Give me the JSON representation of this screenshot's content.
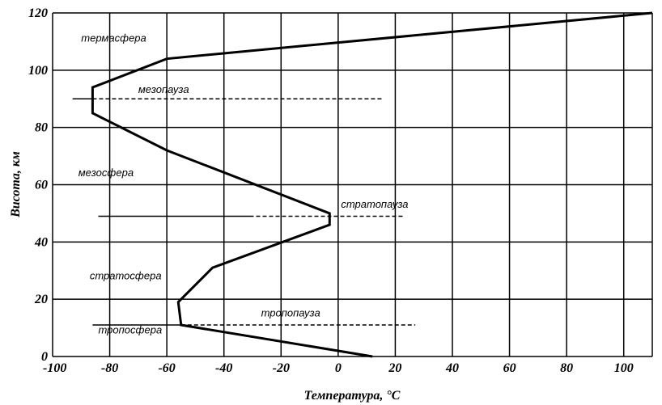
{
  "chart_data": {
    "type": "line",
    "xlabel": "Температура, °C",
    "ylabel": "Висота, км",
    "xlim": [
      -100,
      110
    ],
    "ylim": [
      0,
      120
    ],
    "x_ticks": [
      -100,
      -80,
      -60,
      -40,
      -20,
      0,
      20,
      40,
      60,
      80,
      100
    ],
    "y_ticks": [
      0,
      20,
      40,
      60,
      80,
      100,
      120
    ],
    "grid": true,
    "series": [
      {
        "points": [
          {
            "x": 12,
            "y": 0
          },
          {
            "x": -55,
            "y": 11
          },
          {
            "x": -56,
            "y": 19
          },
          {
            "x": -44,
            "y": 31
          },
          {
            "x": -3,
            "y": 46
          },
          {
            "x": -3,
            "y": 50
          },
          {
            "x": -60,
            "y": 72
          },
          {
            "x": -86,
            "y": 85
          },
          {
            "x": -86,
            "y": 94
          },
          {
            "x": -60,
            "y": 104
          },
          {
            "x": 110,
            "y": 120
          }
        ]
      }
    ],
    "reference_lines": [
      {
        "y": 11,
        "solid_from": -86,
        "dash_from": -55,
        "to": 27
      },
      {
        "y": 49,
        "solid_from": -84,
        "dash_from": -31,
        "to": 23
      },
      {
        "y": 90,
        "solid_from": -93,
        "dash_from": -86,
        "to": 16
      }
    ],
    "annotations": [
      {
        "text": "термасфера",
        "x": -90,
        "y": 110
      },
      {
        "text": "мезопауза",
        "x": -70,
        "y": 92
      },
      {
        "text": "мезосфера",
        "x": -91,
        "y": 63
      },
      {
        "text": "стратопауза",
        "x": 1,
        "y": 52
      },
      {
        "text": "стратосфера",
        "x": -87,
        "y": 27
      },
      {
        "text": "тропопауза",
        "x": -27,
        "y": 14
      },
      {
        "text": "тропосфера",
        "x": -84,
        "y": 8
      }
    ]
  }
}
